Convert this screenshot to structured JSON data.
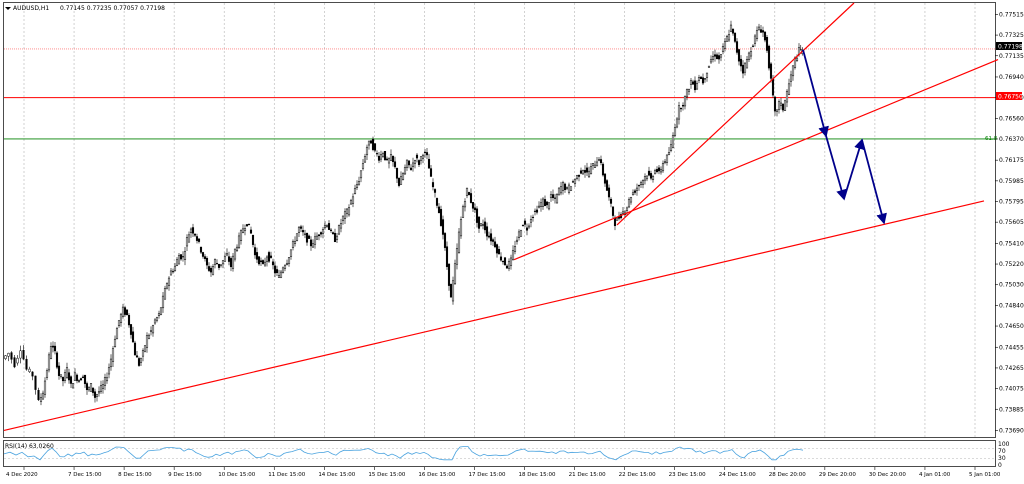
{
  "header": {
    "symbol": "AUDUSD,H1",
    "ohlc": "0.77145 0.77235 0.77057 0.77198"
  },
  "indicator": {
    "label": "RSI(14) 63.0260",
    "levels": [
      "100",
      "70",
      "30",
      "0"
    ]
  },
  "price_tags": {
    "current": "0.77198",
    "hline": "0.76750",
    "fib": "61.8"
  },
  "colors": {
    "background": "#ffffff",
    "grid": "#b4b4b4",
    "candle": "#000000",
    "trendline": "#ff0000",
    "fib_line": "#008000",
    "forecast": "#00008b",
    "rsi": "#4aa3df",
    "price_tag_bg": "#000000",
    "hline_tag_bg": "#ff0000"
  },
  "chart_data": {
    "type": "candlestick",
    "y_ticks": [
      "0.77515",
      "0.77325",
      "0.77135",
      "0.76940",
      "0.76750",
      "0.76560",
      "0.76370",
      "0.76175",
      "0.75985",
      "0.75795",
      "0.75605",
      "0.75410",
      "0.75220",
      "0.75030",
      "0.74840",
      "0.74650",
      "0.74455",
      "0.74265",
      "0.74075",
      "0.73885",
      "0.73690"
    ],
    "x_ticks": [
      "4 Dec 2020",
      "7 Dec 15:00",
      "8 Dec 15:00",
      "9 Dec 15:00",
      "10 Dec 15:00",
      "11 Dec 15:00",
      "14 Dec 15:00",
      "15 Dec 15:00",
      "16 Dec 15:00",
      "17 Dec 15:00",
      "18 Dec 15:00",
      "21 Dec 15:00",
      "22 Dec 15:00",
      "23 Dec 15:00",
      "24 Dec 15:00",
      "28 Dec 20:00",
      "29 Dec 20:00",
      "30 Dec 20:00",
      "4 Jan 01:00",
      "5 Jan 01:00"
    ],
    "ylim": [
      0.7363,
      0.7762
    ],
    "horizontal_levels": [
      {
        "value": 0.77198,
        "color": "#ff8080",
        "style": "dotted"
      },
      {
        "value": 0.7675,
        "color": "#ff0000",
        "style": "solid"
      },
      {
        "value": 0.7637,
        "color": "#008000",
        "style": "solid"
      }
    ],
    "trendlines": [
      {
        "from": [
          0,
          0.7369
        ],
        "to": [
          980,
          0.758
        ],
        "color": "#ff0000"
      },
      {
        "from": [
          510,
          0.7526
        ],
        "to": [
          994,
          0.771
        ],
        "color": "#ff0000"
      },
      {
        "from": [
          613,
          0.7558
        ],
        "to": [
          850,
          0.7762
        ],
        "color": "#ff0000"
      }
    ],
    "forecast_path": [
      [
        799,
        0.7719
      ],
      [
        822,
        0.764
      ],
      [
        840,
        0.7582
      ],
      [
        858,
        0.7636
      ],
      [
        880,
        0.756
      ]
    ],
    "price_path": [
      [
        0,
        0.7435
      ],
      [
        6,
        0.744
      ],
      [
        12,
        0.743
      ],
      [
        18,
        0.7445
      ],
      [
        24,
        0.7425
      ],
      [
        30,
        0.742
      ],
      [
        36,
        0.7395
      ],
      [
        40,
        0.7405
      ],
      [
        44,
        0.7425
      ],
      [
        48,
        0.7448
      ],
      [
        52,
        0.744
      ],
      [
        56,
        0.742
      ],
      [
        60,
        0.7415
      ],
      [
        64,
        0.7425
      ],
      [
        68,
        0.741
      ],
      [
        72,
        0.742
      ],
      [
        76,
        0.7415
      ],
      [
        80,
        0.742
      ],
      [
        84,
        0.7405
      ],
      [
        88,
        0.741
      ],
      [
        92,
        0.74
      ],
      [
        96,
        0.7405
      ],
      [
        100,
        0.741
      ],
      [
        104,
        0.742
      ],
      [
        108,
        0.7435
      ],
      [
        112,
        0.7455
      ],
      [
        116,
        0.747
      ],
      [
        120,
        0.748
      ],
      [
        124,
        0.7475
      ],
      [
        128,
        0.746
      ],
      [
        132,
        0.744
      ],
      [
        136,
        0.743
      ],
      [
        140,
        0.744
      ],
      [
        144,
        0.7455
      ],
      [
        148,
        0.746
      ],
      [
        152,
        0.747
      ],
      [
        156,
        0.7475
      ],
      [
        160,
        0.749
      ],
      [
        164,
        0.7505
      ],
      [
        168,
        0.7515
      ],
      [
        172,
        0.752
      ],
      [
        176,
        0.753
      ],
      [
        180,
        0.7528
      ],
      [
        184,
        0.7545
      ],
      [
        188,
        0.7555
      ],
      [
        192,
        0.755
      ],
      [
        196,
        0.754
      ],
      [
        200,
        0.753
      ],
      [
        204,
        0.752
      ],
      [
        208,
        0.7515
      ],
      [
        212,
        0.7525
      ],
      [
        216,
        0.752
      ],
      [
        220,
        0.7525
      ],
      [
        224,
        0.753
      ],
      [
        228,
        0.752
      ],
      [
        232,
        0.7535
      ],
      [
        236,
        0.7545
      ],
      [
        240,
        0.7555
      ],
      [
        244,
        0.756
      ],
      [
        248,
        0.755
      ],
      [
        252,
        0.753
      ],
      [
        256,
        0.7525
      ],
      [
        260,
        0.752
      ],
      [
        264,
        0.753
      ],
      [
        268,
        0.7525
      ],
      [
        272,
        0.7515
      ],
      [
        276,
        0.751
      ],
      [
        280,
        0.752
      ],
      [
        284,
        0.7525
      ],
      [
        288,
        0.7535
      ],
      [
        292,
        0.7545
      ],
      [
        296,
        0.7555
      ],
      [
        300,
        0.755
      ],
      [
        304,
        0.7545
      ],
      [
        308,
        0.754
      ],
      [
        312,
        0.7545
      ],
      [
        316,
        0.755
      ],
      [
        320,
        0.7555
      ],
      [
        324,
        0.756
      ],
      [
        328,
        0.755
      ],
      [
        332,
        0.7545
      ],
      [
        336,
        0.7555
      ],
      [
        340,
        0.7565
      ],
      [
        344,
        0.757
      ],
      [
        348,
        0.758
      ],
      [
        352,
        0.759
      ],
      [
        356,
        0.76
      ],
      [
        360,
        0.7615
      ],
      [
        364,
        0.763
      ],
      [
        368,
        0.7635
      ],
      [
        372,
        0.7625
      ],
      [
        376,
        0.762
      ],
      [
        380,
        0.7625
      ],
      [
        384,
        0.7615
      ],
      [
        388,
        0.762
      ],
      [
        392,
        0.761
      ],
      [
        396,
        0.7595
      ],
      [
        400,
        0.7605
      ],
      [
        404,
        0.7615
      ],
      [
        408,
        0.761
      ],
      [
        412,
        0.762
      ],
      [
        416,
        0.7615
      ],
      [
        420,
        0.7625
      ],
      [
        424,
        0.762
      ],
      [
        428,
        0.76
      ],
      [
        432,
        0.7585
      ],
      [
        436,
        0.757
      ],
      [
        440,
        0.755
      ],
      [
        444,
        0.752
      ],
      [
        448,
        0.749
      ],
      [
        452,
        0.752
      ],
      [
        456,
        0.755
      ],
      [
        460,
        0.7575
      ],
      [
        464,
        0.759
      ],
      [
        468,
        0.758
      ],
      [
        472,
        0.757
      ],
      [
        476,
        0.7555
      ],
      [
        480,
        0.756
      ],
      [
        484,
        0.755
      ],
      [
        488,
        0.7545
      ],
      [
        492,
        0.754
      ],
      [
        496,
        0.753
      ],
      [
        500,
        0.7525
      ],
      [
        504,
        0.752
      ],
      [
        508,
        0.7525
      ],
      [
        512,
        0.754
      ],
      [
        516,
        0.755
      ],
      [
        520,
        0.756
      ],
      [
        524,
        0.7555
      ],
      [
        528,
        0.7565
      ],
      [
        532,
        0.757
      ],
      [
        536,
        0.7575
      ],
      [
        540,
        0.758
      ],
      [
        544,
        0.7575
      ],
      [
        548,
        0.7585
      ],
      [
        552,
        0.758
      ],
      [
        556,
        0.759
      ],
      [
        560,
        0.7595
      ],
      [
        564,
        0.759
      ],
      [
        568,
        0.7595
      ],
      [
        572,
        0.76
      ],
      [
        576,
        0.7605
      ],
      [
        580,
        0.761
      ],
      [
        584,
        0.7605
      ],
      [
        588,
        0.761
      ],
      [
        592,
        0.7615
      ],
      [
        596,
        0.762
      ],
      [
        600,
        0.7605
      ],
      [
        604,
        0.759
      ],
      [
        608,
        0.7575
      ],
      [
        612,
        0.756
      ],
      [
        616,
        0.7565
      ],
      [
        620,
        0.757
      ],
      [
        624,
        0.7575
      ],
      [
        628,
        0.7585
      ],
      [
        632,
        0.759
      ],
      [
        636,
        0.7595
      ],
      [
        640,
        0.76
      ],
      [
        644,
        0.7605
      ],
      [
        648,
        0.76
      ],
      [
        652,
        0.761
      ],
      [
        656,
        0.7605
      ],
      [
        660,
        0.7615
      ],
      [
        664,
        0.762
      ],
      [
        668,
        0.763
      ],
      [
        672,
        0.765
      ],
      [
        676,
        0.7665
      ],
      [
        680,
        0.767
      ],
      [
        684,
        0.768
      ],
      [
        688,
        0.769
      ],
      [
        692,
        0.7685
      ],
      [
        696,
        0.7695
      ],
      [
        700,
        0.769
      ],
      [
        704,
        0.77
      ],
      [
        708,
        0.771
      ],
      [
        712,
        0.7715
      ],
      [
        716,
        0.771
      ],
      [
        720,
        0.772
      ],
      [
        724,
        0.773
      ],
      [
        728,
        0.774
      ],
      [
        732,
        0.7725
      ],
      [
        736,
        0.771
      ],
      [
        740,
        0.77
      ],
      [
        744,
        0.771
      ],
      [
        748,
        0.772
      ],
      [
        752,
        0.773
      ],
      [
        756,
        0.774
      ],
      [
        760,
        0.7735
      ],
      [
        764,
        0.772
      ],
      [
        768,
        0.769
      ],
      [
        772,
        0.766
      ],
      [
        776,
        0.767
      ],
      [
        780,
        0.7665
      ],
      [
        784,
        0.768
      ],
      [
        788,
        0.7695
      ],
      [
        792,
        0.771
      ],
      [
        796,
        0.7718
      ],
      [
        799,
        0.7719
      ]
    ],
    "rsi_range": [
      0,
      100
    ],
    "rsi_last": 63.026
  }
}
